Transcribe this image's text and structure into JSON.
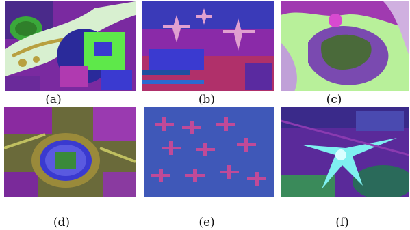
{
  "figure": {
    "panels": [
      {
        "label": "(a)",
        "scene": "aerial-park-icon"
      },
      {
        "label": "(b)",
        "scene": "aerial-airport-apron-icon"
      },
      {
        "label": "(c)",
        "scene": "aerial-coastline-icon"
      },
      {
        "label": "(d)",
        "scene": "aerial-stadium-icon"
      },
      {
        "label": "(e)",
        "scene": "aerial-parked-airplanes-icon"
      },
      {
        "label": "(f)",
        "scene": "aerial-star-shaped-terminal-icon"
      }
    ],
    "colors": {
      "magenta": "#9b2fb0",
      "green": "#5ee84a",
      "blue": "#3a3ad0",
      "cyan": "#7ff0f0",
      "purple": "#5a2a9a"
    }
  }
}
